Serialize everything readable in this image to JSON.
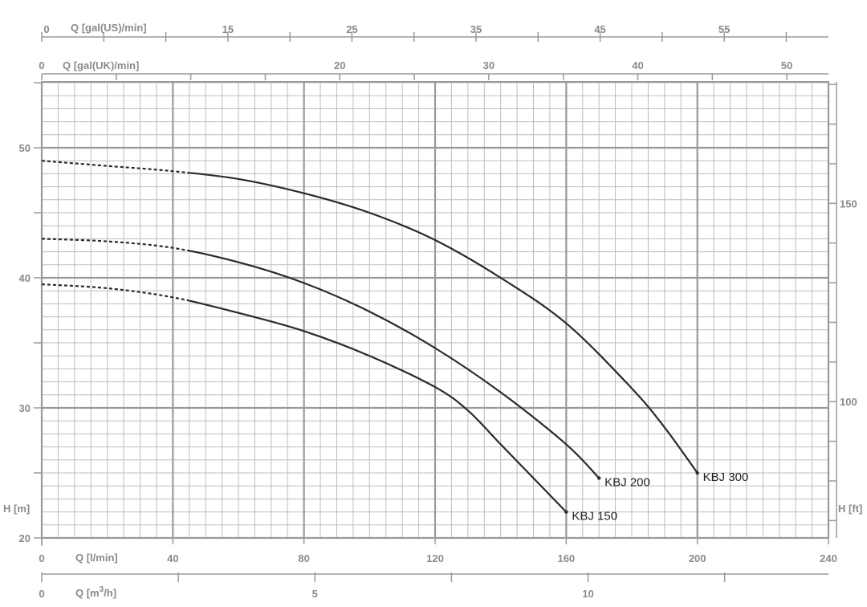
{
  "chart_data": {
    "type": "line",
    "x_unit_label": "Q [l/min]",
    "xlim": [
      0,
      240
    ],
    "x_ticks": [
      0,
      40,
      80,
      120,
      160,
      200,
      240
    ],
    "y_unit_label_left": "H [m]",
    "ylim": [
      20,
      55
    ],
    "y_ticks": [
      20,
      30,
      40,
      50
    ],
    "y_unit_label_right": "H [ft]",
    "y_ticks_right": [
      100,
      150
    ],
    "secondary_axes": [
      {
        "label": "Q [m3/h]",
        "label_base": "Q [m",
        "label_sup": "3",
        "label_tail": "/h]",
        "ticks": [
          0,
          5,
          10
        ]
      },
      {
        "label": "Q [gal(UK)/min]",
        "ticks": [
          0,
          20,
          30,
          40,
          50
        ]
      },
      {
        "label": "Q [gal(US)/min]",
        "ticks": [
          0,
          15,
          25,
          35,
          45,
          55
        ]
      }
    ],
    "grid": true,
    "series": [
      {
        "name": "KBJ 150",
        "dashed_until": 45,
        "points": [
          [
            0,
            39.5
          ],
          [
            20,
            39.2
          ],
          [
            40,
            38.5
          ],
          [
            60,
            37.3
          ],
          [
            80,
            35.9
          ],
          [
            100,
            34.0
          ],
          [
            120,
            31.6
          ],
          [
            130,
            29.8
          ],
          [
            140,
            27.2
          ],
          [
            150,
            24.6
          ],
          [
            160,
            22.0
          ]
        ]
      },
      {
        "name": "KBJ 200",
        "dashed_until": 45,
        "points": [
          [
            0,
            43.0
          ],
          [
            20,
            42.8
          ],
          [
            40,
            42.3
          ],
          [
            60,
            41.2
          ],
          [
            80,
            39.6
          ],
          [
            100,
            37.4
          ],
          [
            120,
            34.6
          ],
          [
            140,
            31.2
          ],
          [
            160,
            27.2
          ],
          [
            170,
            24.6
          ]
        ]
      },
      {
        "name": "KBJ 300",
        "dashed_until": 45,
        "points": [
          [
            0,
            49.0
          ],
          [
            20,
            48.6
          ],
          [
            40,
            48.2
          ],
          [
            60,
            47.6
          ],
          [
            80,
            46.5
          ],
          [
            100,
            45.0
          ],
          [
            120,
            42.9
          ],
          [
            140,
            40.0
          ],
          [
            160,
            36.5
          ],
          [
            180,
            31.5
          ],
          [
            190,
            28.5
          ],
          [
            200,
            25.0
          ]
        ]
      }
    ]
  }
}
